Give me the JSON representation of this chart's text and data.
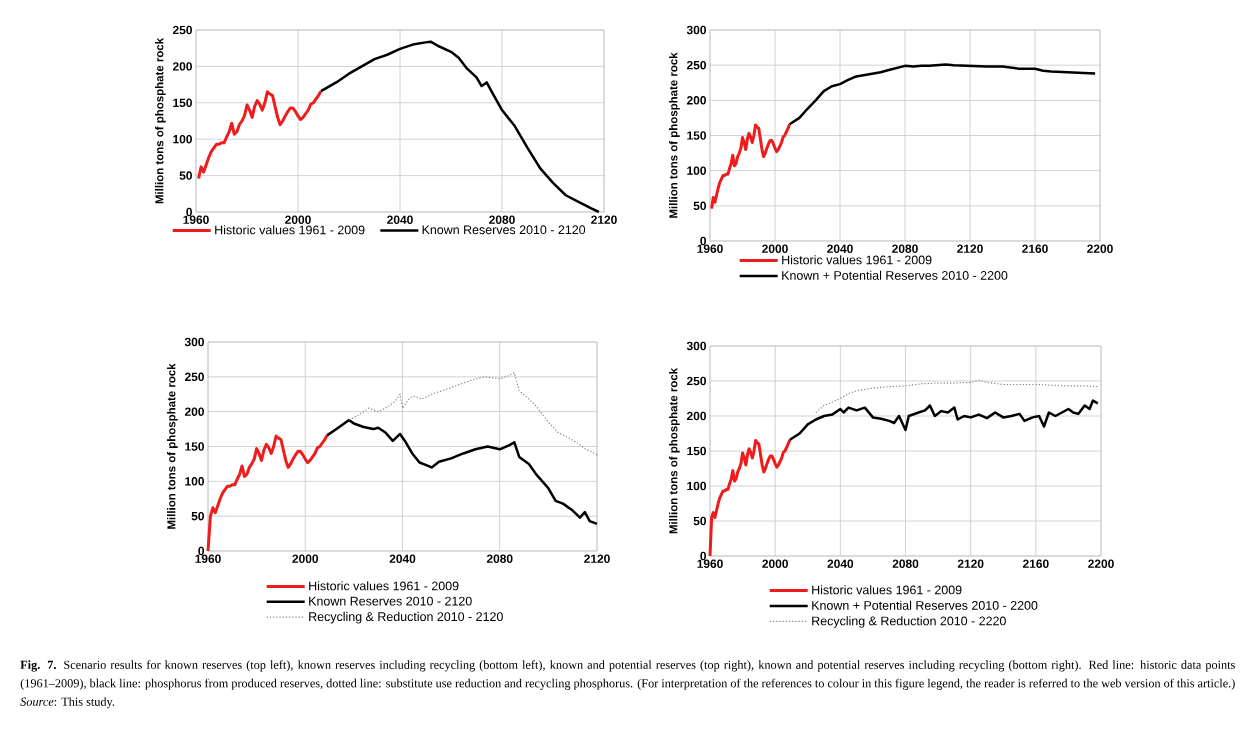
{
  "chart_data": [
    {
      "type": "line",
      "ylabel": "Million tons of phosphate rock",
      "xlim": [
        1960,
        2120
      ],
      "xticks": [
        1960,
        2000,
        2040,
        2080,
        2120
      ],
      "ylim": [
        0,
        250
      ],
      "yticks": [
        0,
        50,
        100,
        150,
        200,
        250
      ],
      "grid": true,
      "legend": "bottom",
      "annotations": [
        "**Fig. 7.** Scenario results for known reserves (top left), known reserves including recycling (bottom left), known and potential reserves (top right), known and potential reserves including recycling (bottom right). Red line: historic data points (1961–2009), black line: phosphorus from produced reserves, dotted line: substitute use reduction and recycling phosphorus. (For interpretation of the references to colour in this figure legend, the reader is referred to the web version of this article.)",
        "*Source*: This study."
      ],
      "series": [
        {
          "name": "Historic values 1961 - 2009",
          "color": "#ee1c1c",
          "x": [
            1961,
            1962,
            1963,
            1964,
            1965,
            1966,
            1967,
            1968,
            1969,
            1970,
            1971,
            1972,
            1973,
            1974,
            1975,
            1976,
            1977,
            1978,
            1979,
            1980,
            1981,
            1982,
            1983,
            1984,
            1985,
            1986,
            1987,
            1988,
            1989,
            1990,
            1991,
            1992,
            1993,
            1994,
            1995,
            1996,
            1997,
            1998,
            1999,
            2000,
            2001,
            2002,
            2003,
            2004,
            2005,
            2006,
            2007,
            2008,
            2009
          ],
          "values": [
            46,
            62,
            55,
            65,
            75,
            83,
            88,
            93,
            93,
            95,
            95,
            103,
            110,
            122,
            107,
            110,
            120,
            125,
            132,
            147,
            140,
            130,
            145,
            153,
            148,
            140,
            150,
            165,
            162,
            160,
            145,
            130,
            120,
            125,
            132,
            138,
            143,
            143,
            138,
            132,
            127,
            130,
            135,
            140,
            148,
            150,
            155,
            160,
            166
          ]
        },
        {
          "name": "Known Reserves 2010 - 2120",
          "color": "#000000",
          "x": [
            2009,
            2015,
            2020,
            2025,
            2030,
            2035,
            2040,
            2045,
            2050,
            2052,
            2055,
            2060,
            2063,
            2066,
            2070,
            2072,
            2074,
            2076,
            2080,
            2085,
            2090,
            2095,
            2100,
            2105,
            2110,
            2115,
            2118
          ],
          "values": [
            166,
            178,
            190,
            200,
            210,
            216,
            224,
            230,
            233,
            234,
            228,
            220,
            212,
            198,
            185,
            173,
            178,
            165,
            140,
            118,
            88,
            60,
            40,
            23,
            14,
            5,
            0
          ]
        }
      ]
    },
    {
      "type": "line",
      "ylabel": "Million tons of phosphate rock",
      "xlim": [
        1960,
        2200
      ],
      "xticks": [
        1960,
        2000,
        2040,
        2080,
        2120,
        2160,
        2200
      ],
      "ylim": [
        0,
        300
      ],
      "yticks": [
        0,
        50,
        100,
        150,
        200,
        250,
        300
      ],
      "grid": true,
      "legend": "bottom",
      "series": [
        {
          "name": "Historic values 1961 - 2009",
          "color": "#ee1c1c",
          "x": [
            1961,
            1962,
            1963,
            1964,
            1965,
            1966,
            1967,
            1968,
            1969,
            1970,
            1971,
            1972,
            1973,
            1974,
            1975,
            1976,
            1977,
            1978,
            1979,
            1980,
            1981,
            1982,
            1983,
            1984,
            1985,
            1986,
            1987,
            1988,
            1989,
            1990,
            1991,
            1992,
            1993,
            1994,
            1995,
            1996,
            1997,
            1998,
            1999,
            2000,
            2001,
            2002,
            2003,
            2004,
            2005,
            2006,
            2007,
            2008,
            2009
          ],
          "values": [
            46,
            62,
            55,
            65,
            75,
            83,
            88,
            93,
            93,
            95,
            95,
            103,
            110,
            122,
            107,
            110,
            120,
            125,
            132,
            147,
            140,
            130,
            145,
            153,
            148,
            140,
            150,
            165,
            162,
            160,
            145,
            130,
            120,
            125,
            132,
            138,
            143,
            143,
            138,
            132,
            127,
            130,
            135,
            140,
            148,
            150,
            155,
            160,
            166
          ]
        },
        {
          "name": "Known + Potential Reserves 2010 - 2200",
          "color": "#000000",
          "x": [
            2009,
            2015,
            2020,
            2025,
            2030,
            2035,
            2040,
            2045,
            2050,
            2055,
            2060,
            2065,
            2070,
            2075,
            2080,
            2085,
            2090,
            2095,
            2100,
            2105,
            2110,
            2120,
            2130,
            2140,
            2150,
            2160,
            2165,
            2170,
            2180,
            2190,
            2197
          ],
          "values": [
            166,
            175,
            188,
            200,
            213,
            220,
            223,
            229,
            234,
            236,
            238,
            240,
            243,
            246,
            249,
            248,
            249,
            249,
            250,
            251,
            250,
            249,
            248,
            248,
            245,
            245,
            242,
            241,
            240,
            239,
            238
          ]
        }
      ]
    },
    {
      "type": "line",
      "ylabel": "Million tons of phosphate rock",
      "xlim": [
        1960,
        2120
      ],
      "xticks": [
        1960,
        2000,
        2040,
        2080,
        2120
      ],
      "ylim": [
        0,
        300
      ],
      "yticks": [
        0,
        50,
        100,
        150,
        200,
        250,
        300
      ],
      "grid": true,
      "legend": "bottom",
      "series": [
        {
          "name": "Historic values 1961 - 2009",
          "color": "#ee1c1c",
          "x": [
            1960,
            1961,
            1962,
            1963,
            1964,
            1965,
            1966,
            1967,
            1968,
            1969,
            1970,
            1971,
            1972,
            1973,
            1974,
            1975,
            1976,
            1977,
            1978,
            1979,
            1980,
            1981,
            1982,
            1983,
            1984,
            1985,
            1986,
            1987,
            1988,
            1989,
            1990,
            1991,
            1992,
            1993,
            1994,
            1995,
            1996,
            1997,
            1998,
            1999,
            2000,
            2001,
            2002,
            2003,
            2004,
            2005,
            2006,
            2007,
            2008,
            2009
          ],
          "values": [
            0,
            50,
            62,
            55,
            65,
            75,
            83,
            88,
            93,
            93,
            95,
            95,
            103,
            110,
            122,
            107,
            110,
            120,
            125,
            132,
            147,
            140,
            130,
            145,
            153,
            148,
            140,
            150,
            165,
            162,
            160,
            145,
            130,
            120,
            125,
            132,
            138,
            143,
            143,
            138,
            132,
            127,
            130,
            135,
            140,
            148,
            150,
            155,
            160,
            166
          ]
        },
        {
          "name": "Known Reserves 2010 - 2120",
          "color": "#000000",
          "x": [
            2009,
            2014,
            2018,
            2020,
            2024,
            2028,
            2030,
            2033,
            2036,
            2039,
            2041,
            2044,
            2047,
            2050,
            2052,
            2055,
            2060,
            2065,
            2070,
            2075,
            2080,
            2084,
            2086,
            2088,
            2092,
            2095,
            2100,
            2103,
            2106,
            2110,
            2113,
            2115,
            2117,
            2120
          ],
          "values": [
            166,
            178,
            188,
            183,
            178,
            175,
            177,
            170,
            158,
            168,
            158,
            140,
            127,
            123,
            120,
            128,
            133,
            140,
            146,
            150,
            146,
            152,
            156,
            135,
            125,
            110,
            90,
            72,
            68,
            58,
            48,
            56,
            43,
            39
          ]
        },
        {
          "name": "Recycling & Reduction 2010 - 2120",
          "color": "#808080",
          "line_style": "dotted",
          "x": [
            2018,
            2022,
            2026,
            2030,
            2034,
            2037,
            2039,
            2040,
            2043,
            2045,
            2048,
            2052,
            2058,
            2064,
            2070,
            2074,
            2080,
            2084,
            2086,
            2088,
            2092,
            2095,
            2100,
            2104,
            2108,
            2112,
            2115,
            2118,
            2120
          ],
          "values": [
            188,
            195,
            205,
            200,
            207,
            215,
            225,
            205,
            220,
            222,
            218,
            225,
            232,
            240,
            247,
            250,
            247,
            252,
            256,
            230,
            218,
            208,
            185,
            170,
            163,
            155,
            147,
            142,
            138
          ]
        }
      ]
    },
    {
      "type": "line",
      "ylabel": "Million tons of phosphate rock",
      "xlim": [
        1960,
        2200
      ],
      "xticks": [
        1960,
        2000,
        2040,
        2080,
        2120,
        2160,
        2200
      ],
      "ylim": [
        0,
        300
      ],
      "yticks": [
        0,
        50,
        100,
        150,
        200,
        250,
        300
      ],
      "grid": true,
      "legend": "bottom",
      "series": [
        {
          "name": "Historic values 1961 - 2009",
          "color": "#ee1c1c",
          "x": [
            1960,
            1961,
            1962,
            1963,
            1964,
            1965,
            1966,
            1967,
            1968,
            1969,
            1970,
            1971,
            1972,
            1973,
            1974,
            1975,
            1976,
            1977,
            1978,
            1979,
            1980,
            1981,
            1982,
            1983,
            1984,
            1985,
            1986,
            1987,
            1988,
            1989,
            1990,
            1991,
            1992,
            1993,
            1994,
            1995,
            1996,
            1997,
            1998,
            1999,
            2000,
            2001,
            2002,
            2003,
            2004,
            2005,
            2006,
            2007,
            2008,
            2009
          ],
          "values": [
            0,
            55,
            62,
            55,
            65,
            75,
            83,
            88,
            93,
            93,
            95,
            95,
            103,
            110,
            122,
            107,
            110,
            120,
            125,
            132,
            147,
            140,
            130,
            145,
            153,
            148,
            140,
            150,
            165,
            162,
            160,
            145,
            130,
            120,
            125,
            132,
            138,
            143,
            143,
            138,
            132,
            127,
            130,
            135,
            140,
            148,
            150,
            155,
            160,
            166
          ]
        },
        {
          "name": "Known + Potential Reserves 2010 - 2200",
          "color": "#000000",
          "x": [
            2009,
            2015,
            2020,
            2025,
            2030,
            2035,
            2040,
            2042,
            2045,
            2050,
            2055,
            2060,
            2065,
            2070,
            2073,
            2076,
            2080,
            2082,
            2088,
            2092,
            2095,
            2098,
            2102,
            2106,
            2110,
            2112,
            2116,
            2120,
            2125,
            2130,
            2135,
            2140,
            2145,
            2150,
            2153,
            2158,
            2162,
            2165,
            2168,
            2172,
            2176,
            2180,
            2183,
            2186,
            2190,
            2193,
            2195,
            2198
          ],
          "values": [
            166,
            175,
            188,
            195,
            200,
            202,
            210,
            205,
            212,
            208,
            212,
            198,
            196,
            193,
            190,
            200,
            180,
            200,
            205,
            208,
            215,
            200,
            207,
            205,
            212,
            195,
            200,
            198,
            202,
            197,
            205,
            198,
            200,
            203,
            193,
            198,
            200,
            185,
            205,
            200,
            205,
            210,
            205,
            203,
            215,
            210,
            222,
            218
          ]
        },
        {
          "name": "Recycling & Reduction 2010 - 2220",
          "color": "#808080",
          "line_style": "dotted",
          "x": [
            2025,
            2030,
            2035,
            2040,
            2045,
            2050,
            2060,
            2070,
            2080,
            2090,
            2100,
            2110,
            2120,
            2125,
            2130,
            2140,
            2150,
            2160,
            2170,
            2180,
            2190,
            2198
          ],
          "values": [
            205,
            215,
            220,
            225,
            232,
            236,
            240,
            242,
            243,
            246,
            247,
            247,
            248,
            251,
            248,
            245,
            245,
            245,
            244,
            243,
            243,
            242
          ]
        }
      ]
    }
  ]
}
